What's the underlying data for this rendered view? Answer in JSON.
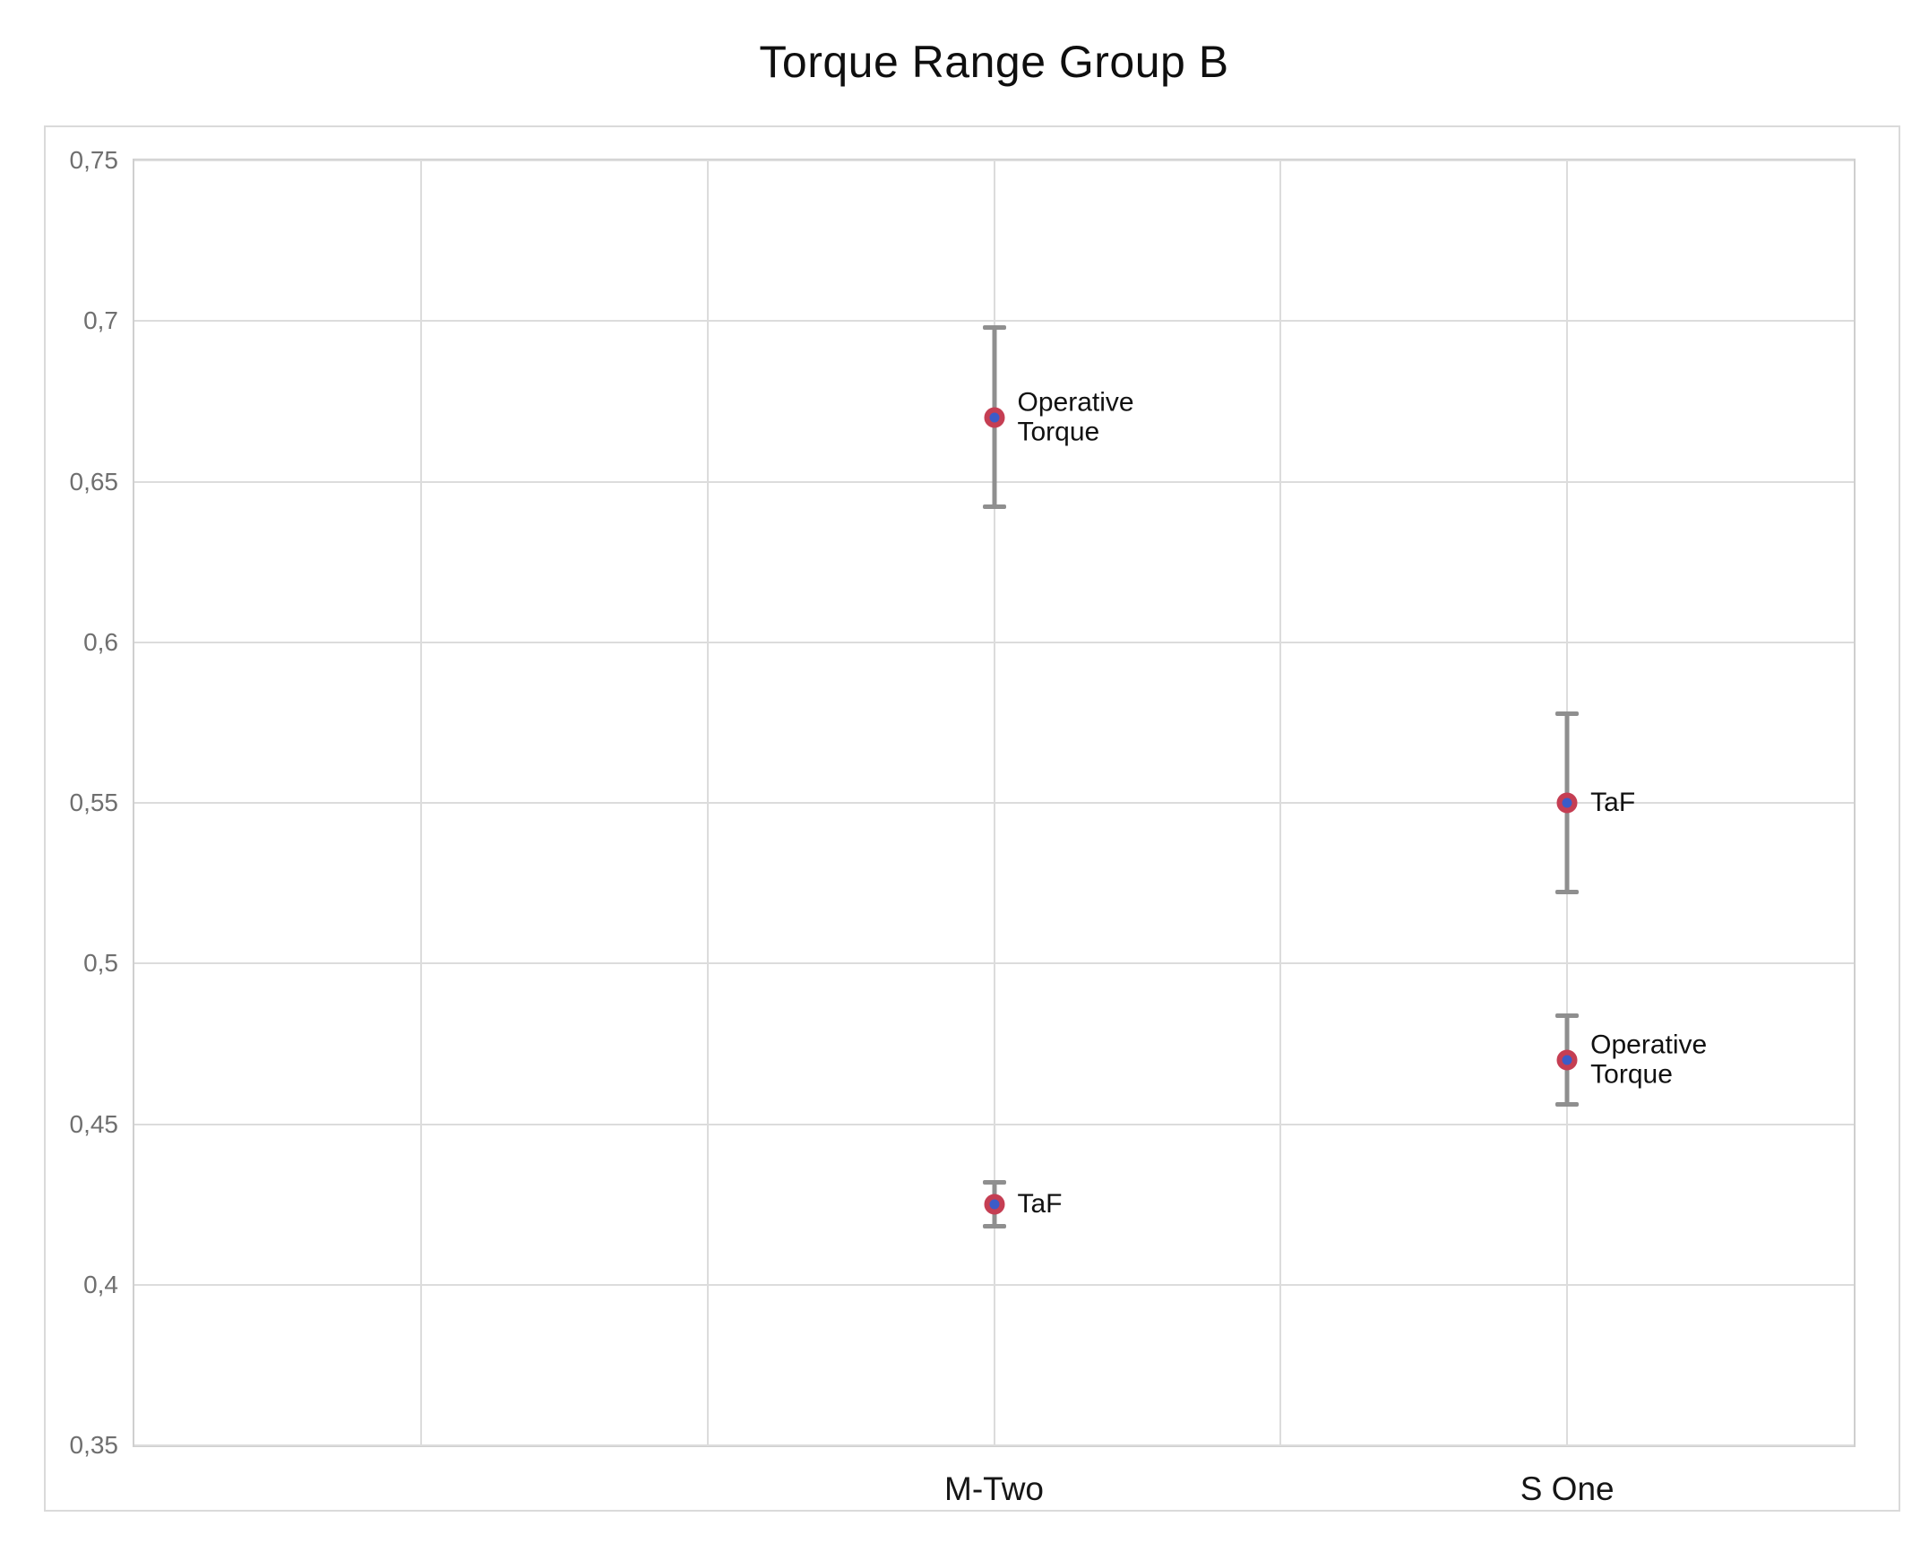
{
  "title": "Torque Range Group B",
  "chart_data": {
    "type": "scatter",
    "title": "Torque Range Group B",
    "categories": [
      "M-Two",
      "S One"
    ],
    "grid": true,
    "legend": "none (points labeled inline)",
    "y_axis": {
      "min": 0.35,
      "max": 0.75,
      "step": 0.05,
      "decimal_separator": ",",
      "ticks": [
        {
          "value": 0.75,
          "label": "0,75"
        },
        {
          "value": 0.7,
          "label": "0,7"
        },
        {
          "value": 0.65,
          "label": "0,65"
        },
        {
          "value": 0.6,
          "label": "0,6"
        },
        {
          "value": 0.55,
          "label": "0,55"
        },
        {
          "value": 0.5,
          "label": "0,5"
        },
        {
          "value": 0.45,
          "label": "0,45"
        },
        {
          "value": 0.4,
          "label": "0,4"
        },
        {
          "value": 0.35,
          "label": "0,35"
        }
      ]
    },
    "x_axis": {
      "columns": 6,
      "category_labels": [
        {
          "label": "M-Two",
          "column_position": 3
        },
        {
          "label": "S One",
          "column_position": 5
        }
      ]
    },
    "series": [
      {
        "name": "Operative Torque",
        "label_lines": [
          "Operative",
          "Torque"
        ],
        "points": [
          {
            "category": "M-Two",
            "column_position": 3,
            "value": 0.67,
            "error_low": 0.642,
            "error_high": 0.698
          },
          {
            "category": "S One",
            "column_position": 5,
            "value": 0.47,
            "error_low": 0.456,
            "error_high": 0.484
          }
        ]
      },
      {
        "name": "TaF",
        "label_lines": [
          "TaF"
        ],
        "points": [
          {
            "category": "M-Two",
            "column_position": 3,
            "value": 0.425,
            "error_low": 0.418,
            "error_high": 0.432
          },
          {
            "category": "S One",
            "column_position": 5,
            "value": 0.55,
            "error_low": 0.522,
            "error_high": 0.578
          }
        ]
      }
    ],
    "colors": {
      "marker_ring": "#c53e53",
      "marker_fill": "#3b5cc8",
      "error_bar": "#8f8f8f",
      "gridline": "#dcdcdc",
      "plot_border": "#cfcfcf",
      "frame_border": "#dadada",
      "y_tick_label": "#6f6f6f",
      "x_label": "#161616",
      "title": "#0f0f0f"
    }
  }
}
